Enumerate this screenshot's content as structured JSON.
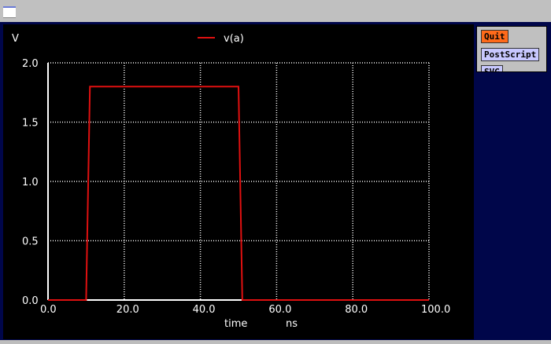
{
  "window": {
    "icon": "window-icon"
  },
  "buttons": {
    "quit": "Quit",
    "postscript": "PostScript",
    "svg": "SVG"
  },
  "colors": {
    "trace": "#e01010",
    "background": "#000000",
    "grid": "#ffffff",
    "frame": "#00064a",
    "quit": "#ff6a1a"
  },
  "chart_data": {
    "type": "line",
    "ylabel": "V",
    "xlabel": "time",
    "xunit": "ns",
    "xlim": [
      0,
      100
    ],
    "ylim": [
      0,
      2.0
    ],
    "xticks": [
      "0.0",
      "20.0",
      "40.0",
      "60.0",
      "80.0",
      "100.0"
    ],
    "yticks": [
      "0.0",
      "0.5",
      "1.0",
      "1.5",
      "2.0"
    ],
    "grid": true,
    "legend": "top-center",
    "series": [
      {
        "name": "v(a)",
        "color": "#e01010",
        "x": [
          0,
          10,
          11,
          50,
          51,
          100
        ],
        "y": [
          0,
          0,
          1.8,
          1.8,
          0,
          0
        ]
      }
    ]
  }
}
